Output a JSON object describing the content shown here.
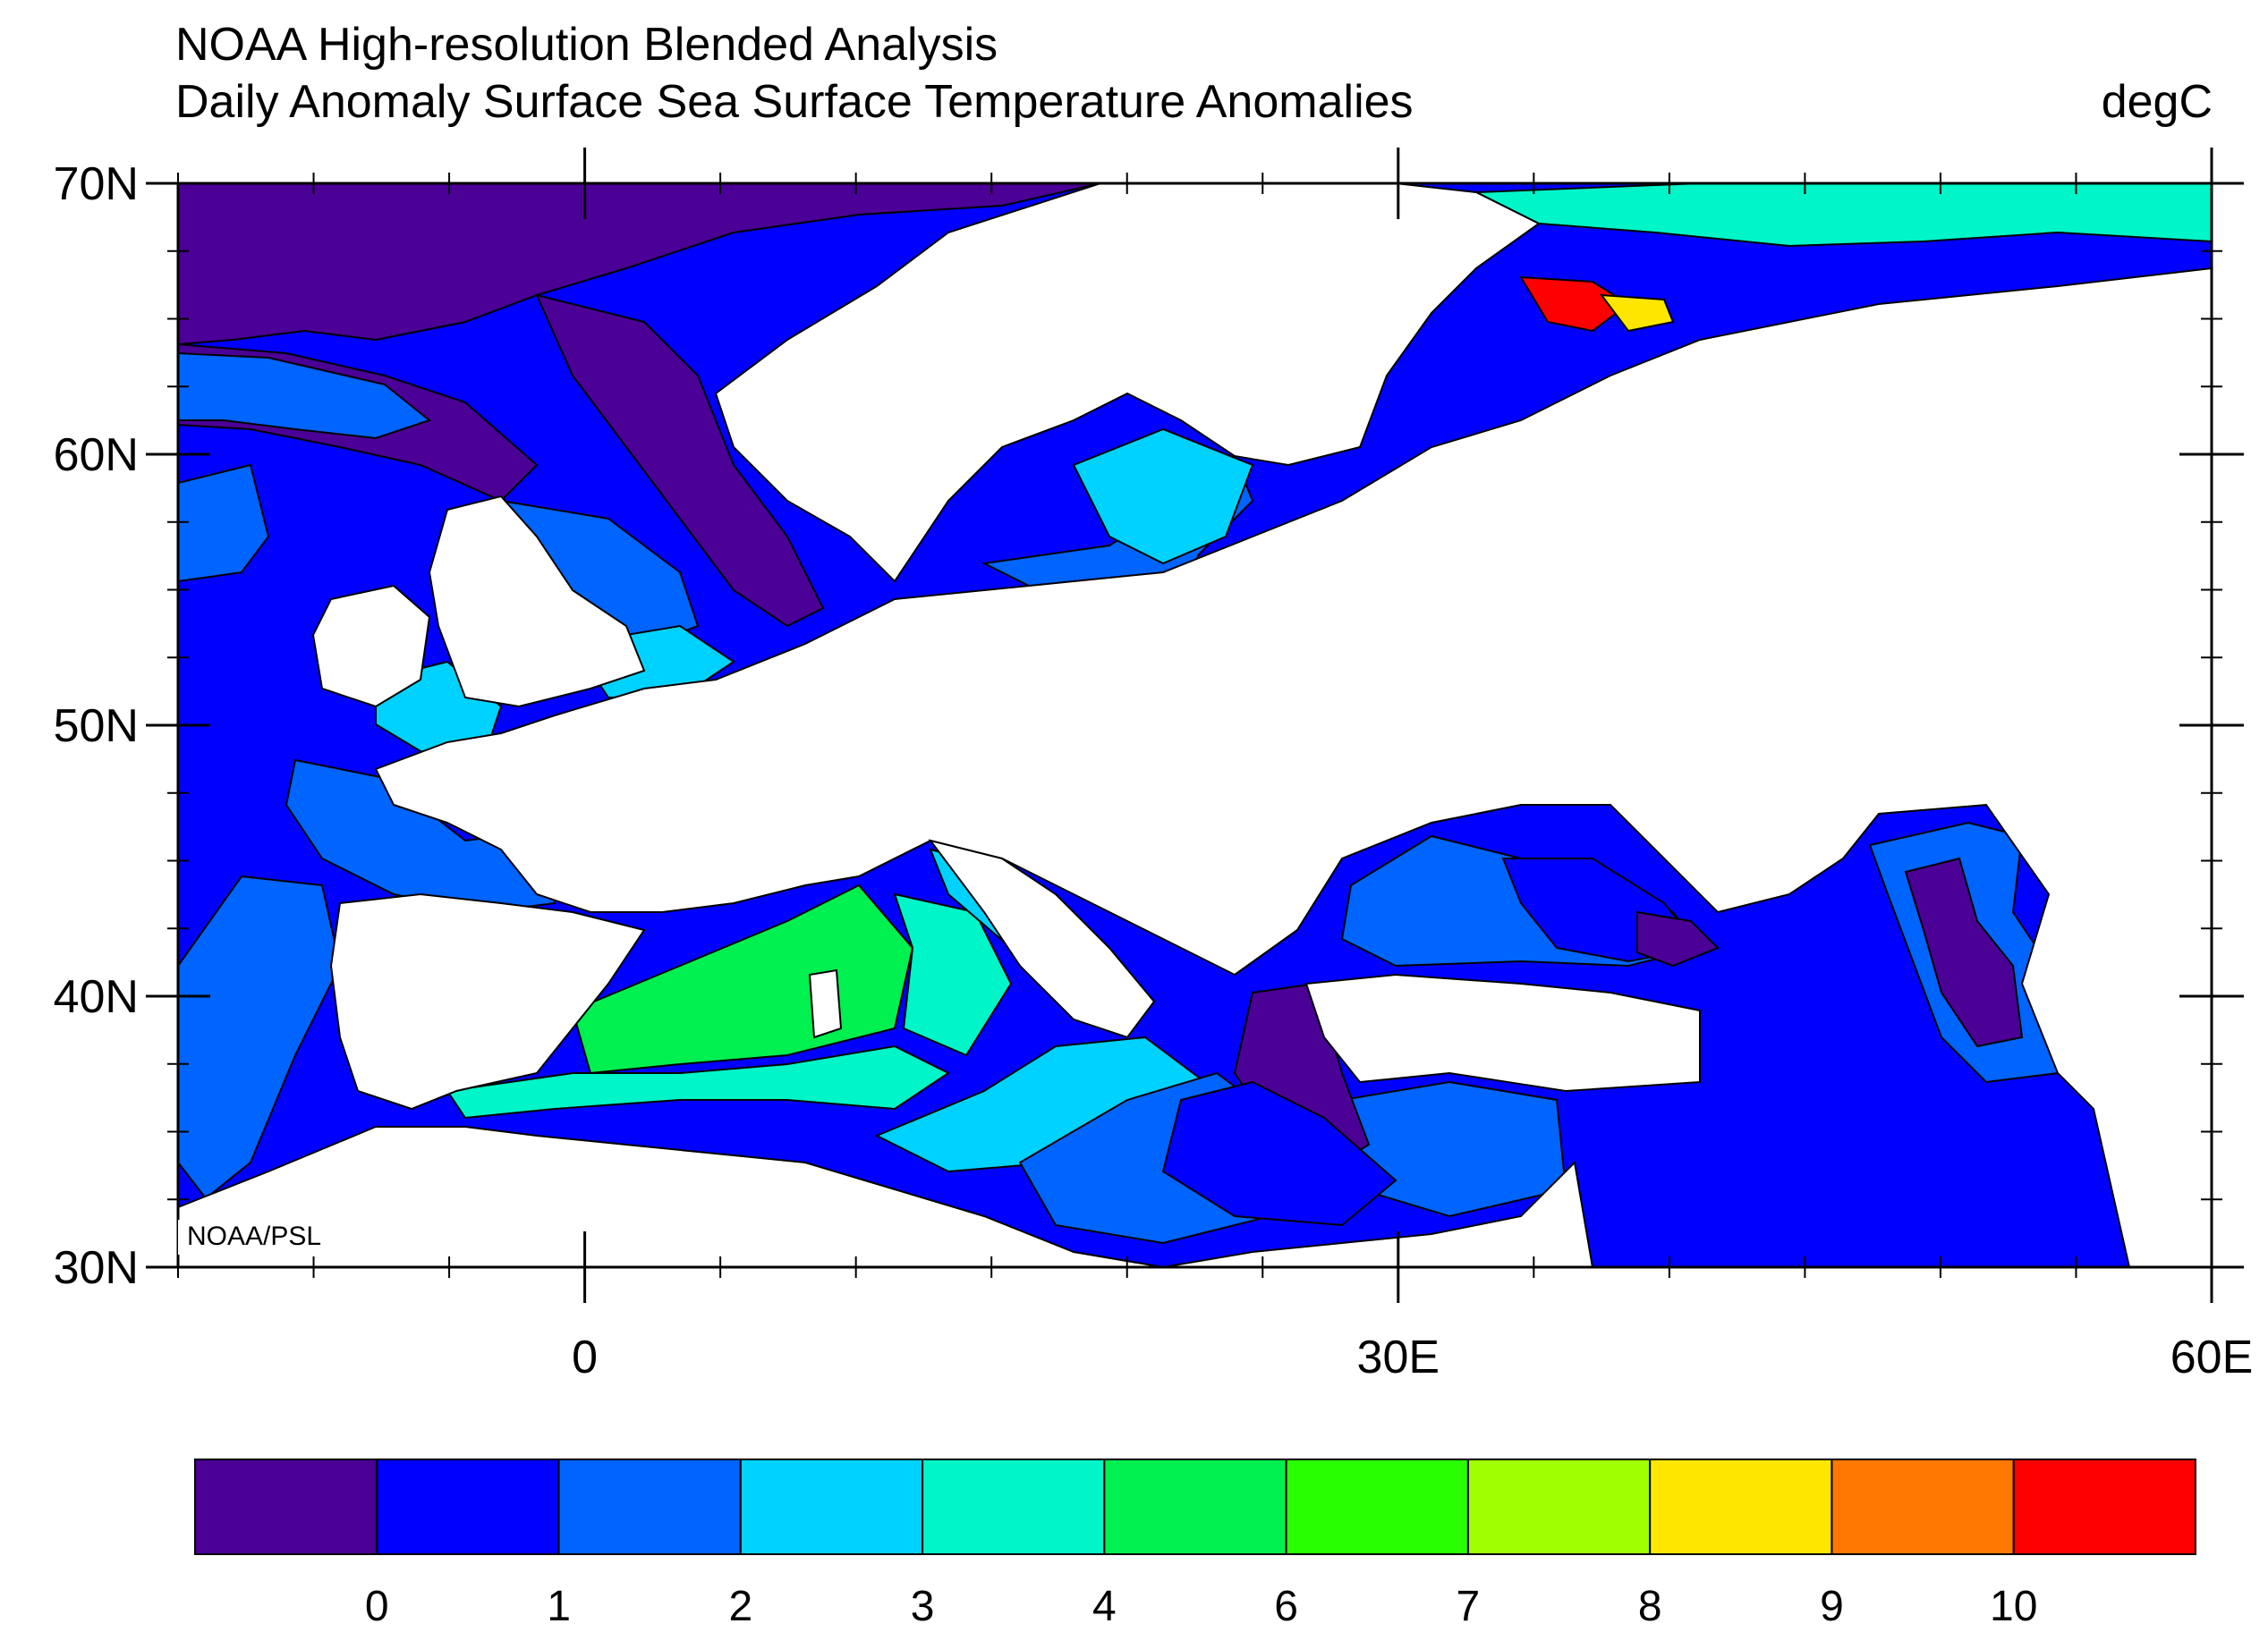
{
  "header": {
    "title": "NOAA High-resolution Blended Analysis",
    "subtitle": "Daily Anomaly Surface Sea Surface Temperature Anomalies",
    "units": "degC"
  },
  "credit": "NOAA/PSL",
  "map": {
    "lon_range": [
      -15,
      60
    ],
    "lat_range": [
      30,
      70
    ],
    "lat_ticks": [
      {
        "value": 70,
        "label": "70N"
      },
      {
        "value": 60,
        "label": "60N"
      },
      {
        "value": 50,
        "label": "50N"
      },
      {
        "value": 40,
        "label": "40N"
      },
      {
        "value": 30,
        "label": "30N"
      }
    ],
    "lon_ticks": [
      {
        "value": 0,
        "label": "0"
      },
      {
        "value": 30,
        "label": "30E"
      },
      {
        "value": 60,
        "label": "60E"
      }
    ]
  },
  "colorbar": {
    "colors": [
      "#4b0096",
      "#0000ff",
      "#0064ff",
      "#00d2ff",
      "#00f5c8",
      "#00f050",
      "#28ff00",
      "#a0ff00",
      "#ffe600",
      "#ff7800",
      "#ff0000"
    ],
    "labels": [
      "0",
      "1",
      "2",
      "3",
      "4",
      "6",
      "7",
      "8",
      "9",
      "10"
    ]
  }
}
